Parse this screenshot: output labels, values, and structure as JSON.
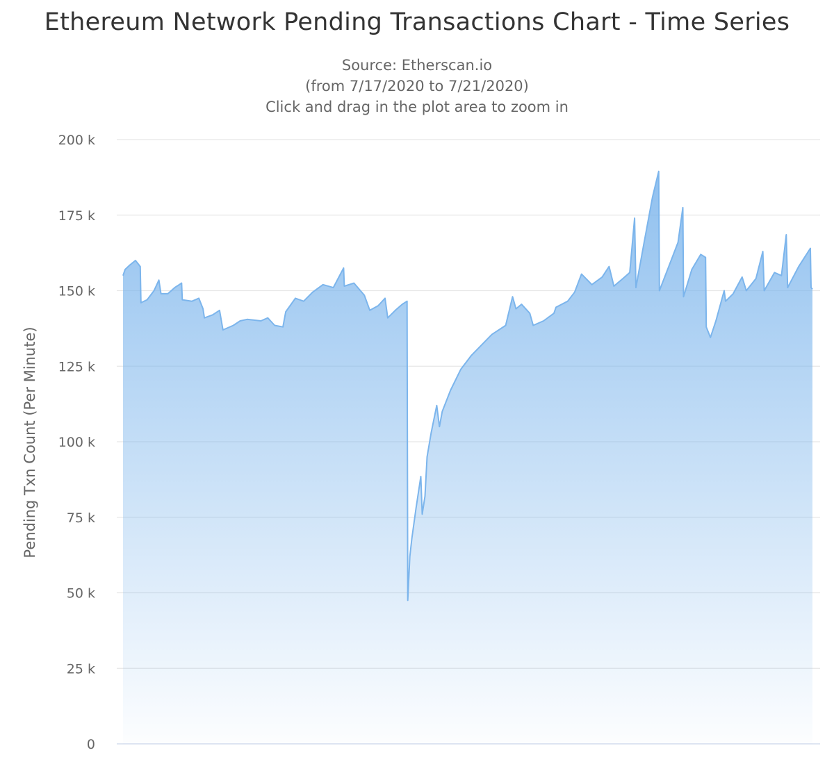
{
  "chart_data": {
    "type": "area",
    "title": "Ethereum Network Pending Transactions Chart - Time Series",
    "subtitle": [
      "Source: Etherscan.io",
      "(from 7/17/2020 to 7/21/2020)",
      "Click and drag in the plot area to zoom in"
    ],
    "xlabel": "",
    "ylabel": "Pending Txn Count (Per Minute)",
    "ylim": [
      0,
      200000
    ],
    "yticks": [
      "0",
      "25 k",
      "50 k",
      "75 k",
      "100 k",
      "125 k",
      "150 k",
      "175 k",
      "200 k"
    ],
    "grid": true,
    "legend": "none",
    "x_range": [
      "7/17/2020",
      "7/21/2020"
    ],
    "series": [
      {
        "color": "#7cb5ec",
        "points": [
          [
            0.0,
            155000
          ],
          [
            0.003,
            157000
          ],
          [
            0.01,
            158500
          ],
          [
            0.018,
            160000
          ],
          [
            0.025,
            158000
          ],
          [
            0.026,
            146000
          ],
          [
            0.035,
            147000
          ],
          [
            0.045,
            150000
          ],
          [
            0.052,
            153500
          ],
          [
            0.055,
            149000
          ],
          [
            0.065,
            149000
          ],
          [
            0.075,
            151000
          ],
          [
            0.085,
            152500
          ],
          [
            0.086,
            147000
          ],
          [
            0.1,
            146500
          ],
          [
            0.11,
            147500
          ],
          [
            0.116,
            144000
          ],
          [
            0.118,
            141000
          ],
          [
            0.13,
            142000
          ],
          [
            0.14,
            143500
          ],
          [
            0.145,
            137000
          ],
          [
            0.16,
            138500
          ],
          [
            0.17,
            140000
          ],
          [
            0.18,
            140500
          ],
          [
            0.2,
            140000
          ],
          [
            0.21,
            141000
          ],
          [
            0.22,
            138500
          ],
          [
            0.232,
            138000
          ],
          [
            0.236,
            143000
          ],
          [
            0.25,
            147500
          ],
          [
            0.262,
            146500
          ],
          [
            0.275,
            149500
          ],
          [
            0.29,
            152000
          ],
          [
            0.305,
            151000
          ],
          [
            0.32,
            157500
          ],
          [
            0.321,
            151500
          ],
          [
            0.335,
            152500
          ],
          [
            0.35,
            148500
          ],
          [
            0.358,
            143500
          ],
          [
            0.37,
            145000
          ],
          [
            0.38,
            147500
          ],
          [
            0.384,
            141000
          ],
          [
            0.395,
            143500
          ],
          [
            0.405,
            145500
          ],
          [
            0.412,
            146500
          ],
          [
            0.413,
            47500
          ],
          [
            0.416,
            62000
          ],
          [
            0.419,
            68000
          ],
          [
            0.425,
            78000
          ],
          [
            0.432,
            88500
          ],
          [
            0.434,
            76000
          ],
          [
            0.438,
            82000
          ],
          [
            0.441,
            95000
          ],
          [
            0.447,
            103000
          ],
          [
            0.455,
            112000
          ],
          [
            0.459,
            105000
          ],
          [
            0.463,
            110000
          ],
          [
            0.475,
            117000
          ],
          [
            0.49,
            124000
          ],
          [
            0.505,
            128500
          ],
          [
            0.52,
            132000
          ],
          [
            0.535,
            135500
          ],
          [
            0.555,
            138500
          ],
          [
            0.565,
            148000
          ],
          [
            0.57,
            144000
          ],
          [
            0.578,
            145500
          ],
          [
            0.59,
            142500
          ],
          [
            0.595,
            138500
          ],
          [
            0.61,
            140000
          ],
          [
            0.625,
            142500
          ],
          [
            0.628,
            144500
          ],
          [
            0.645,
            146500
          ],
          [
            0.655,
            149500
          ],
          [
            0.665,
            155500
          ],
          [
            0.68,
            152000
          ],
          [
            0.695,
            154500
          ],
          [
            0.705,
            158000
          ],
          [
            0.712,
            151500
          ],
          [
            0.725,
            154000
          ],
          [
            0.735,
            156000
          ],
          [
            0.742,
            174000
          ],
          [
            0.744,
            151000
          ],
          [
            0.755,
            165000
          ],
          [
            0.768,
            181000
          ],
          [
            0.777,
            189500
          ],
          [
            0.778,
            150000
          ],
          [
            0.795,
            160000
          ],
          [
            0.805,
            166000
          ],
          [
            0.812,
            177500
          ],
          [
            0.813,
            148000
          ],
          [
            0.825,
            157000
          ],
          [
            0.838,
            162000
          ],
          [
            0.845,
            161000
          ],
          [
            0.846,
            138000
          ],
          [
            0.852,
            134500
          ],
          [
            0.86,
            140000
          ],
          [
            0.872,
            150000
          ],
          [
            0.874,
            146500
          ],
          [
            0.885,
            149000
          ],
          [
            0.898,
            154500
          ],
          [
            0.904,
            150000
          ],
          [
            0.918,
            154000
          ],
          [
            0.928,
            163000
          ],
          [
            0.93,
            150000
          ],
          [
            0.945,
            156000
          ],
          [
            0.955,
            155000
          ],
          [
            0.962,
            168500
          ],
          [
            0.964,
            151000
          ],
          [
            0.98,
            158000
          ],
          [
            0.997,
            164000
          ],
          [
            0.998,
            151000
          ],
          [
            1.0,
            150500
          ]
        ]
      }
    ]
  }
}
